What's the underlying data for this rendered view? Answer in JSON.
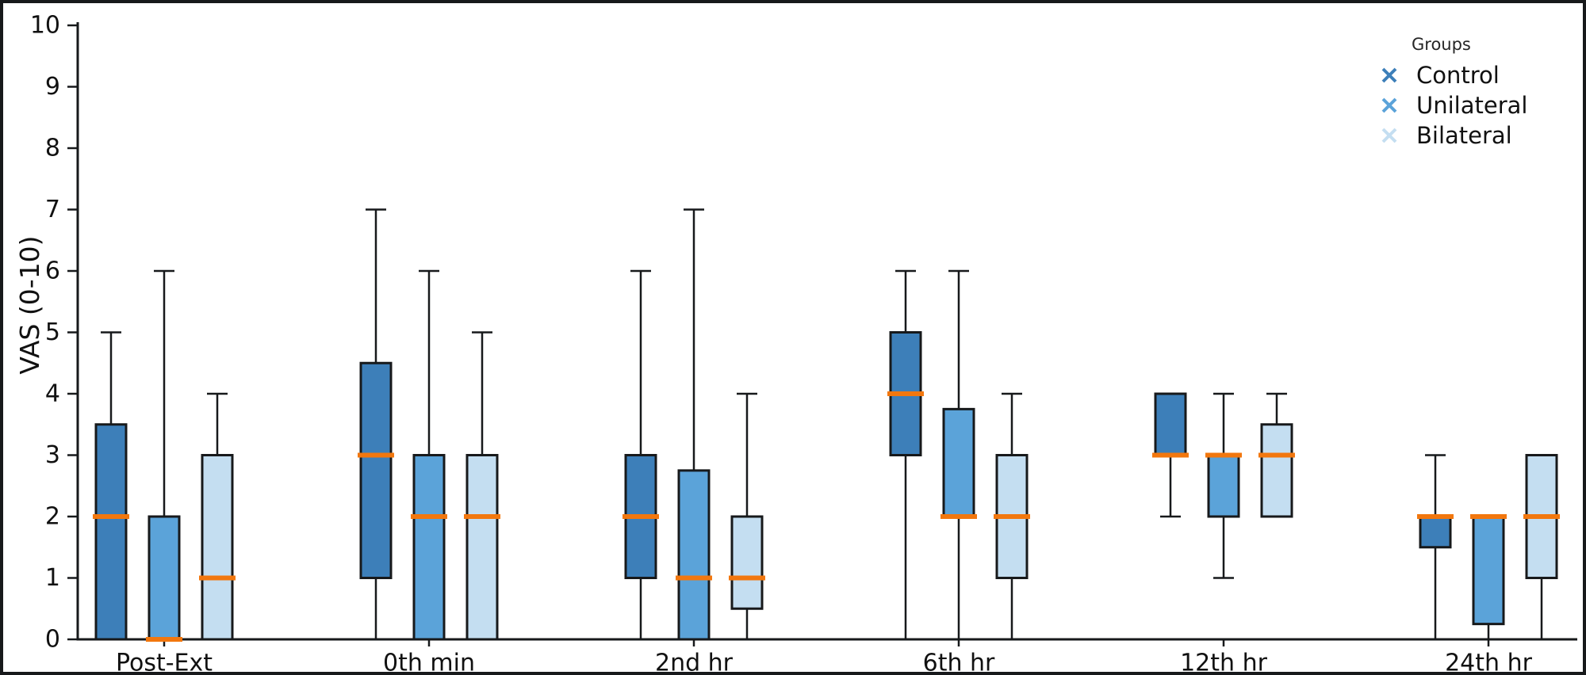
{
  "chart_data": {
    "type": "boxplot",
    "title": "",
    "ylabel": "VAS (0-10)",
    "xlabel": "",
    "ylim": [
      0,
      10
    ],
    "yticks": [
      "0",
      "1",
      "2",
      "3",
      "4",
      "5",
      "6",
      "7",
      "8",
      "9",
      "10"
    ],
    "categories": [
      "Post-Ext",
      "0th min",
      "2nd hr",
      "6th hr",
      "12th hr",
      "24th hr"
    ],
    "legend": {
      "title": "Groups",
      "position": "top-right",
      "marker": "x"
    },
    "median_color": "#f2770e",
    "box_edge_color": "#17191b",
    "series": [
      {
        "name": "Control",
        "color": "#3d7fb9",
        "boxes": [
          {
            "whislo": 0,
            "q1": 0,
            "med": 2,
            "q3": 3.5,
            "whishi": 5
          },
          {
            "whislo": 0,
            "q1": 1,
            "med": 3,
            "q3": 4.5,
            "whishi": 7
          },
          {
            "whislo": 0,
            "q1": 1,
            "med": 2,
            "q3": 3,
            "whishi": 6
          },
          {
            "whislo": 0,
            "q1": 3,
            "med": 4,
            "q3": 5,
            "whishi": 6
          },
          {
            "whislo": 2,
            "q1": 3,
            "med": 3,
            "q3": 4,
            "whishi": 4
          },
          {
            "whislo": 0,
            "q1": 1.5,
            "med": 2,
            "q3": 2,
            "whishi": 3
          }
        ]
      },
      {
        "name": "Unilateral",
        "color": "#5ba3d9",
        "boxes": [
          {
            "whislo": 0,
            "q1": 0,
            "med": 0,
            "q3": 2,
            "whishi": 6
          },
          {
            "whislo": 0,
            "q1": 0,
            "med": 2,
            "q3": 3,
            "whishi": 6
          },
          {
            "whislo": 0,
            "q1": 0,
            "med": 1,
            "q3": 2.75,
            "whishi": 7
          },
          {
            "whislo": 0,
            "q1": 2,
            "med": 2,
            "q3": 3.75,
            "whishi": 6
          },
          {
            "whislo": 1,
            "q1": 2,
            "med": 3,
            "q3": 3,
            "whishi": 4
          },
          {
            "whislo": 0,
            "q1": 0.25,
            "med": 2,
            "q3": 2,
            "whishi": 2
          }
        ]
      },
      {
        "name": "Bilateral",
        "color": "#c4def1",
        "boxes": [
          {
            "whislo": 0,
            "q1": 0,
            "med": 1,
            "q3": 3,
            "whishi": 4
          },
          {
            "whislo": 0,
            "q1": 0,
            "med": 2,
            "q3": 3,
            "whishi": 5
          },
          {
            "whislo": 0,
            "q1": 0.5,
            "med": 1,
            "q3": 2,
            "whishi": 4
          },
          {
            "whislo": 0,
            "q1": 1,
            "med": 2,
            "q3": 3,
            "whishi": 4
          },
          {
            "whislo": 2,
            "q1": 2,
            "med": 3,
            "q3": 3.5,
            "whishi": 4
          },
          {
            "whislo": 0,
            "q1": 1,
            "med": 2,
            "q3": 3,
            "whishi": 3
          }
        ]
      }
    ]
  }
}
